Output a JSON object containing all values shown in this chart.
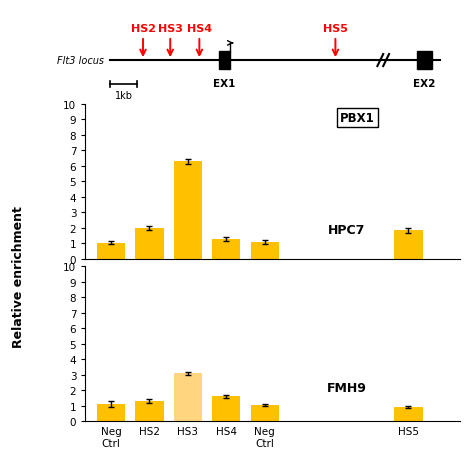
{
  "hpc7_values": [
    1.05,
    2.0,
    6.3,
    1.3,
    1.1,
    1.85
  ],
  "hpc7_errors": [
    0.1,
    0.1,
    0.15,
    0.12,
    0.12,
    0.15
  ],
  "fmh9_values": [
    1.1,
    1.3,
    3.1,
    1.6,
    1.05,
    0.9
  ],
  "fmh9_errors": [
    0.18,
    0.15,
    0.1,
    0.1,
    0.08,
    0.08
  ],
  "categories": [
    "Neg\nCtrl",
    "HS2",
    "HS3",
    "HS4",
    "Neg\nCtrl",
    "HS5"
  ],
  "bar_color": "#FFC000",
  "bar_color_light": "#FFD580",
  "ylim": [
    0,
    10
  ],
  "ylabel": "Relative enrichment",
  "hpc7_label": "HPC7",
  "fmh9_label": "FMH9",
  "pbx1_label": "PBX1",
  "locus_label": "Flt3 locus",
  "hs_labels": [
    "HS2",
    "HS3",
    "HS4",
    "HS5"
  ],
  "ex1_label": "EX1",
  "ex2_label": "EX2",
  "kb_label": "1kb"
}
